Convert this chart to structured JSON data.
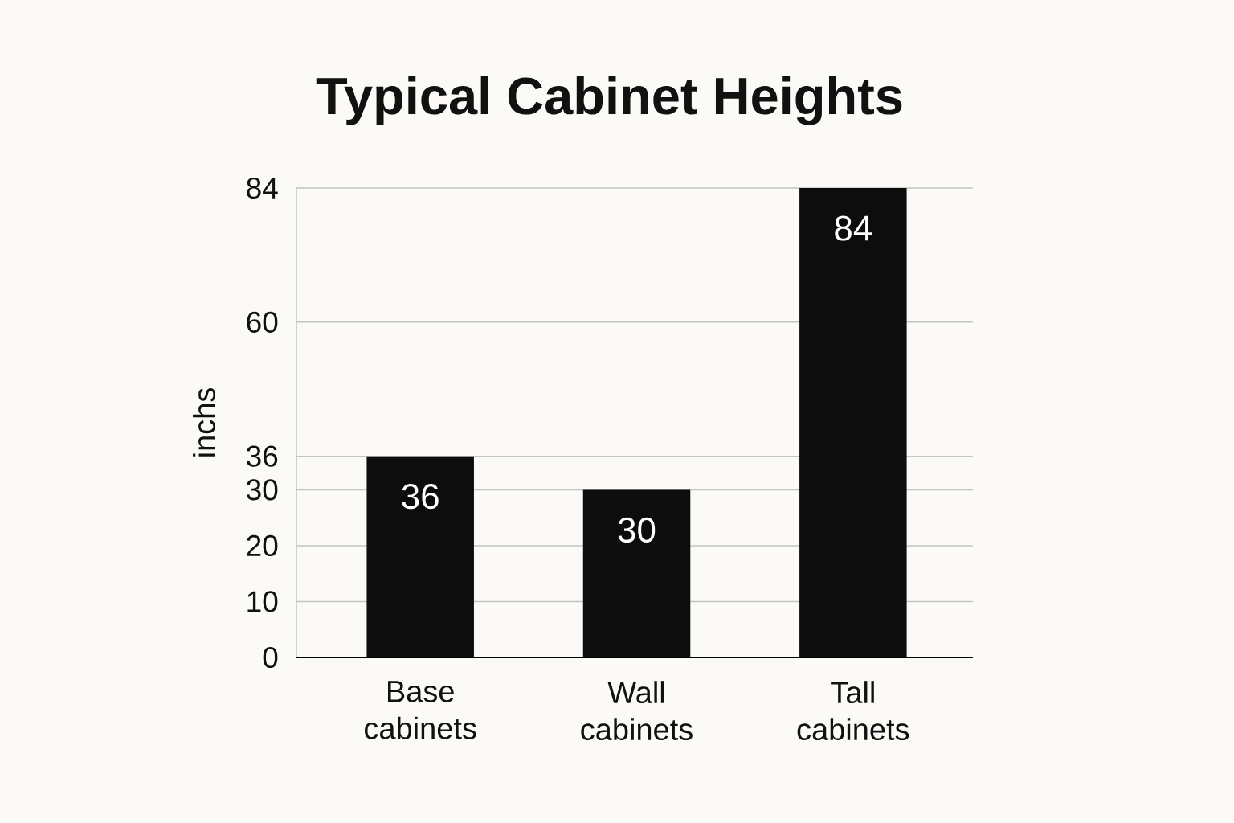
{
  "chart_data": {
    "type": "bar",
    "title": "Typical Cabinet Heights",
    "ylabel": "inchs",
    "categories": [
      "Base cabinets",
      "Wall cabinets",
      "Tall cabinets"
    ],
    "values": [
      36,
      30,
      84
    ],
    "color": "#0d0d0d",
    "ylim": [
      0,
      84
    ],
    "yticks": [
      0,
      10,
      20,
      30,
      36,
      60,
      84
    ],
    "grid": "y",
    "data_labels": true
  }
}
